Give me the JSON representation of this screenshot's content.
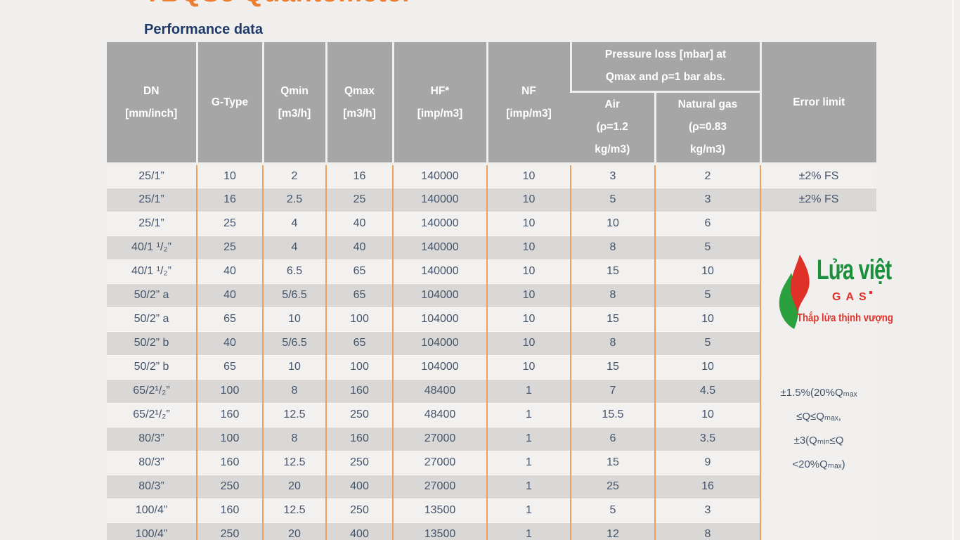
{
  "page": {
    "title": "TBQSe Quantometer",
    "subtitle": "Performance data"
  },
  "table": {
    "headers": {
      "dn": "DN\n[mm/inch]",
      "g_type": "G-Type",
      "qmin": "Qmin\n[m3/h]",
      "qmax": "Qmax\n[m3/h]",
      "hf": "HF*\n[imp/m3]",
      "nf": "NF\n[imp/m3]",
      "pressure_group": "Pressure loss [mbar] at\nQmax and ρ=1 bar abs.",
      "air": "Air\n(ρ=1.2\nkg/m3)",
      "natural_gas": "Natural gas\n(ρ=0.83\nkg/m3)",
      "error_limit": "Error limit"
    },
    "column_keys": [
      "dn",
      "g-type",
      "qmin",
      "qmax",
      "hf",
      "nf",
      "air",
      "natural-gas"
    ],
    "rows": [
      [
        "25/1”",
        "10",
        "2",
        "16",
        "140000",
        "10",
        "3",
        "2"
      ],
      [
        "25/1”",
        "16",
        "2.5",
        "25",
        "140000",
        "10",
        "5",
        "3"
      ],
      [
        "25/1”",
        "25",
        "4",
        "40",
        "140000",
        "10",
        "10",
        "6"
      ],
      [
        "40/1 ¹/₂”",
        "25",
        "4",
        "40",
        "140000",
        "10",
        "8",
        "5"
      ],
      [
        "40/1 ¹/₂”",
        "40",
        "6.5",
        "65",
        "140000",
        "10",
        "15",
        "10"
      ],
      [
        "50/2” a",
        "40",
        "5/6.5",
        "65",
        "104000",
        "10",
        "8",
        "5"
      ],
      [
        "50/2” a",
        "65",
        "10",
        "100",
        "104000",
        "10",
        "15",
        "10"
      ],
      [
        "50/2” b",
        "40",
        "5/6.5",
        "65",
        "104000",
        "10",
        "8",
        "5"
      ],
      [
        "50/2” b",
        "65",
        "10",
        "100",
        "104000",
        "10",
        "15",
        "10"
      ],
      [
        "65/2¹/₂”",
        "100",
        "8",
        "160",
        "48400",
        "1",
        "7",
        "4.5"
      ],
      [
        "65/2¹/₂”",
        "160",
        "12.5",
        "250",
        "48400",
        "1",
        "15.5",
        "10"
      ],
      [
        "80/3”",
        "100",
        "8",
        "160",
        "27000",
        "1",
        "6",
        "3.5"
      ],
      [
        "80/3”",
        "160",
        "12.5",
        "250",
        "27000",
        "1",
        "15",
        "9"
      ],
      [
        "80/3”",
        "250",
        "20",
        "400",
        "27000",
        "1",
        "25",
        "16"
      ],
      [
        "100/4”",
        "160",
        "12.5",
        "250",
        "13500",
        "1",
        "5",
        "3"
      ],
      [
        "100/4”",
        "250",
        "20",
        "400",
        "13500",
        "1",
        "12",
        "8"
      ]
    ],
    "error_limit_values": [
      "±2% FS",
      "±2% FS"
    ],
    "error_limit_merged": "±1.5%(20%Qₘₐₓ\n≤Q≤Qₘₐₓ,\n±3(Qₘᵢₙ≤Q\n<20%Qₘₐₓ)"
  },
  "watermark": {
    "brand": "Lửa việt",
    "brand_sub": "GAS",
    "tagline": "Thắp lửa thịnh vượng"
  },
  "colors": {
    "title_orange": "#ed7d31",
    "subtitle_blue": "#1f3a68",
    "header_gray": "#a6a6a6",
    "row_gray": "#d9d8d6",
    "row_light": "#f2f1ef",
    "cell_border_orange": "#eda05f",
    "body_text": "#44546a",
    "logo_green": "#1a8f3c",
    "logo_red": "#e2312b"
  }
}
